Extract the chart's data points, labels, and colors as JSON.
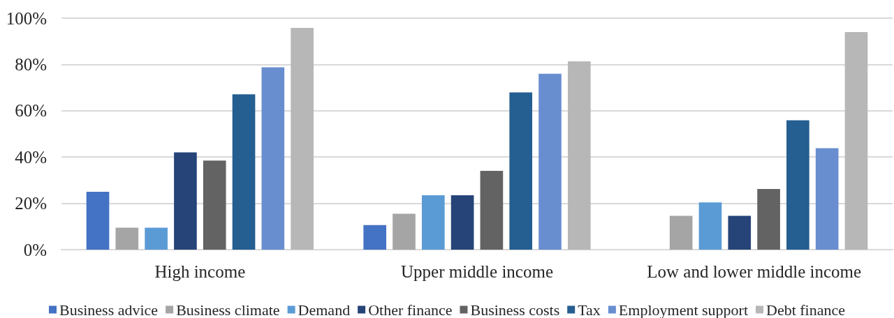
{
  "chart_data": {
    "type": "bar",
    "categories": [
      "High income",
      "Upper middle income",
      "Low and lower middle income"
    ],
    "series": [
      {
        "name": "Business advice",
        "color": "#4472c4",
        "values": [
          25,
          10.6,
          null
        ]
      },
      {
        "name": "Business climate",
        "color": "#a5a5a5",
        "values": [
          9.5,
          15.5,
          14.6
        ]
      },
      {
        "name": "Demand",
        "color": "#5b9bd5",
        "values": [
          9.5,
          23.5,
          20.4
        ]
      },
      {
        "name": "Other finance",
        "color": "#264478",
        "values": [
          42,
          23.5,
          14.6
        ]
      },
      {
        "name": "Business costs",
        "color": "#636363",
        "values": [
          38.5,
          34,
          26.2
        ]
      },
      {
        "name": "Tax",
        "color": "#255e91",
        "values": [
          67.1,
          67.9,
          55.9
        ]
      },
      {
        "name": "Employment support",
        "color": "#698ed0",
        "values": [
          78.8,
          76,
          43.8
        ]
      },
      {
        "name": "Debt finance",
        "color": "#b7b7b7",
        "values": [
          95.8,
          81.3,
          94
        ]
      }
    ],
    "ylim": [
      0,
      100
    ],
    "yticks": [
      {
        "value": 0,
        "label": "0%"
      },
      {
        "value": 20,
        "label": "20%"
      },
      {
        "value": 40,
        "label": "40%"
      },
      {
        "value": 60,
        "label": "60%"
      },
      {
        "value": 80,
        "label": "80%"
      },
      {
        "value": 100,
        "label": "100%"
      }
    ],
    "grid": "y",
    "legend": "bottom"
  }
}
